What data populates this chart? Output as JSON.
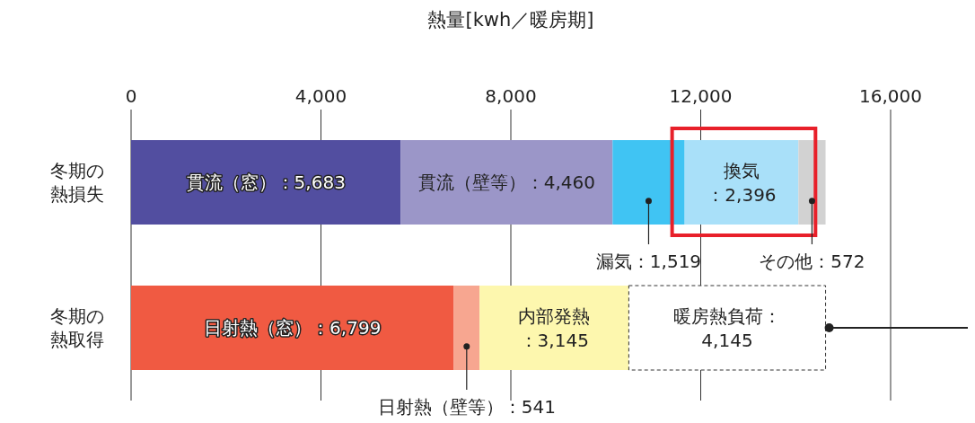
{
  "chart_data": {
    "type": "bar",
    "orientation": "horizontal",
    "stacked": true,
    "xlabel": "熱量[kwh／暖房期]",
    "categories": [
      "冬期の熱損失",
      "冬期の熱取得"
    ],
    "xlim": [
      0,
      16000
    ],
    "xticks": [
      0,
      {
        "value": 4000,
        "label": "4,000"
      },
      {
        "value": 8000,
        "label": "8,000"
      },
      {
        "value": 12000,
        "label": "12,000"
      },
      {
        "value": 16000,
        "label": "16,000"
      }
    ],
    "grid": "x",
    "series": [
      {
        "color": "#524ea0",
        "values": [
          5683,
          null
        ],
        "value_labels": [
          "貫流（窓）：5,683",
          null
        ]
      },
      {
        "color": "#9b96c8",
        "values": [
          4460,
          null
        ],
        "value_labels": [
          "貫流（壁等）：4,460",
          null
        ]
      },
      {
        "color": "#40c4f3",
        "values": [
          1519,
          null
        ],
        "value_labels": [
          "漏気：1,519",
          null
        ]
      },
      {
        "color": "#a9e0f9",
        "values": [
          2396,
          null
        ],
        "value_labels": [
          "換気：2,396",
          null
        ]
      },
      {
        "color": "#d2d2d2",
        "values": [
          572,
          null
        ],
        "value_labels": [
          "その他：572",
          null
        ]
      },
      {
        "color": "#f05a42",
        "values": [
          null,
          6799
        ],
        "value_labels": [
          null,
          "日射熱（窓）：6,799"
        ]
      },
      {
        "color": "#f7a690",
        "values": [
          null,
          541
        ],
        "value_labels": [
          null,
          "日射熱（壁等）：541"
        ]
      },
      {
        "color": "#fdf7ae",
        "values": [
          null,
          3145
        ],
        "value_labels": [
          null,
          "内部発熱：3,145"
        ]
      },
      {
        "color": "#ffffff",
        "line_style": "dashed",
        "values": [
          null,
          4145
        ],
        "value_labels": [
          null,
          "暖房熱負荷：\n4,145"
        ]
      }
    ]
  }
}
